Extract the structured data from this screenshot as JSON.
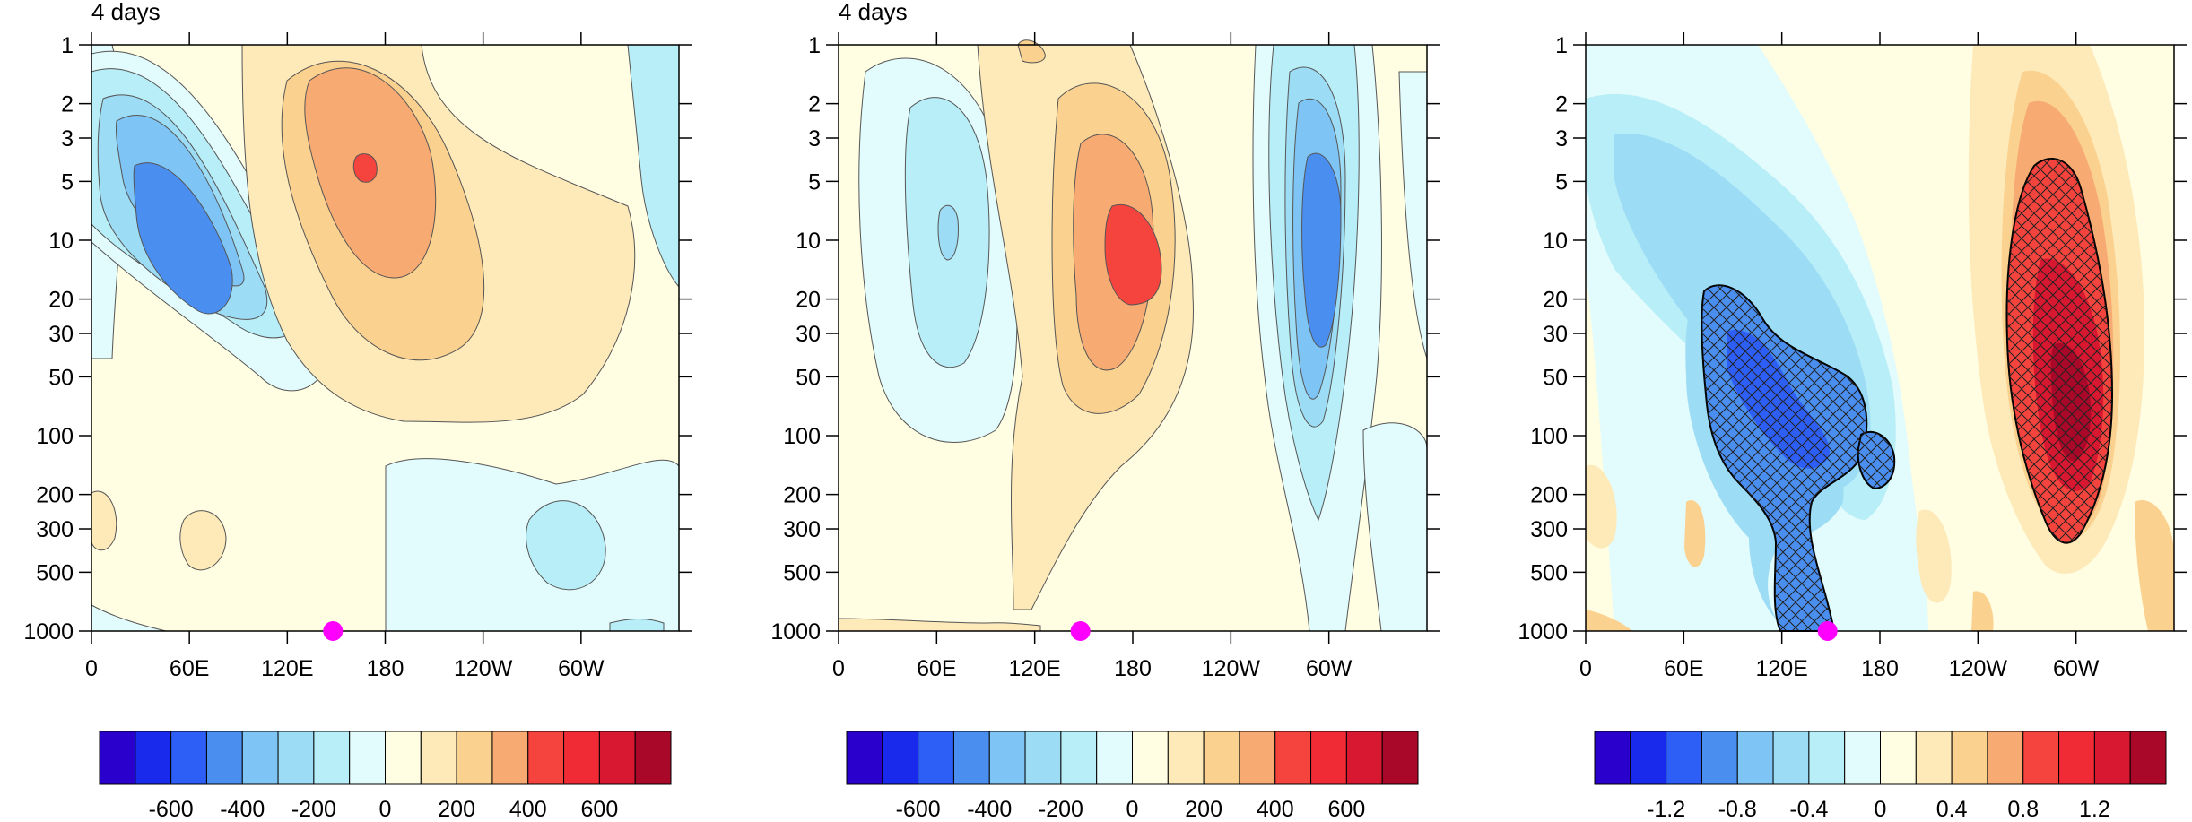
{
  "chart_data": [
    {
      "type": "heatmap",
      "title": "4 days",
      "x_ticks": [
        "0",
        "60E",
        "120E",
        "180",
        "120W",
        "60W"
      ],
      "x_tick_values": [
        0,
        60,
        120,
        180,
        240,
        300
      ],
      "xlim": [
        0,
        360
      ],
      "y_ticks": [
        "1",
        "2",
        "3",
        "5",
        "10",
        "20",
        "30",
        "50",
        "100",
        "200",
        "300",
        "500",
        "1000"
      ],
      "y_tick_values": [
        1,
        2,
        3,
        5,
        10,
        20,
        30,
        50,
        100,
        200,
        300,
        500,
        1000
      ],
      "ylim": [
        1,
        1000
      ],
      "y_scale": "log",
      "y_inverted": true,
      "marker": {
        "x": 148,
        "y": 1000,
        "color": "#ff00ff"
      },
      "colorbar": {
        "tick_labels": [
          "-600",
          "-400",
          "-200",
          "0",
          "200",
          "400",
          "600"
        ],
        "tick_values": [
          -600,
          -400,
          -200,
          0,
          200,
          400,
          600
        ],
        "range": [
          -800,
          800
        ]
      },
      "features": [
        {
          "type": "low",
          "x": 55,
          "y": 12,
          "value": -550
        },
        {
          "type": "high",
          "x": 165,
          "y": 8,
          "value": 450
        }
      ]
    },
    {
      "type": "heatmap",
      "title": "4 days",
      "x_ticks": [
        "0",
        "60E",
        "120E",
        "180",
        "120W",
        "60W"
      ],
      "x_tick_values": [
        0,
        60,
        120,
        180,
        240,
        300
      ],
      "xlim": [
        0,
        360
      ],
      "y_ticks": [
        "1",
        "2",
        "3",
        "5",
        "10",
        "20",
        "30",
        "50",
        "100",
        "200",
        "300",
        "500",
        "1000"
      ],
      "y_tick_values": [
        1,
        2,
        3,
        5,
        10,
        20,
        30,
        50,
        100,
        200,
        300,
        500,
        1000
      ],
      "ylim": [
        1,
        1000
      ],
      "y_scale": "log",
      "y_inverted": true,
      "marker": {
        "x": 148,
        "y": 1000,
        "color": "#ff00ff"
      },
      "colorbar": {
        "tick_labels": [
          "-600",
          "-400",
          "-200",
          "0",
          "200",
          "400",
          "600"
        ],
        "tick_values": [
          -600,
          -400,
          -200,
          0,
          200,
          400,
          600
        ],
        "range": [
          -800,
          800
        ]
      },
      "features": [
        {
          "type": "low",
          "x": 68,
          "y": 15,
          "value": -220
        },
        {
          "type": "high",
          "x": 180,
          "y": 15,
          "value": 550
        },
        {
          "type": "low",
          "x": 295,
          "y": 15,
          "value": -550
        }
      ]
    },
    {
      "type": "heatmap",
      "title": "",
      "x_ticks": [
        "0",
        "60E",
        "120E",
        "180",
        "120W",
        "60W"
      ],
      "x_tick_values": [
        0,
        60,
        120,
        180,
        240,
        300
      ],
      "xlim": [
        0,
        360
      ],
      "y_ticks": [
        "1",
        "2",
        "3",
        "5",
        "10",
        "20",
        "30",
        "50",
        "100",
        "200",
        "300",
        "500",
        "1000"
      ],
      "y_tick_values": [
        1,
        2,
        3,
        5,
        10,
        20,
        30,
        50,
        100,
        200,
        300,
        500,
        1000
      ],
      "ylim": [
        1,
        1000
      ],
      "y_scale": "log",
      "y_inverted": true,
      "marker": {
        "x": 148,
        "y": 1000,
        "color": "#ff00ff"
      },
      "colorbar": {
        "tick_labels": [
          "-1.2",
          "-0.8",
          "-0.4",
          "0",
          "0.4",
          "0.8",
          "1.2"
        ],
        "tick_values": [
          -1.2,
          -0.8,
          -0.4,
          0,
          0.4,
          0.8,
          1.2
        ],
        "range": [
          -1.6,
          1.6
        ]
      },
      "features": [
        {
          "type": "low",
          "x": 125,
          "y": 90,
          "value": -1.1
        },
        {
          "type": "high",
          "x": 300,
          "y": 70,
          "value": 1.4
        }
      ],
      "hatched_regions": [
        "negative region 120E-150E",
        "positive region 60W"
      ]
    }
  ],
  "colors": {
    "scale": [
      "#2a00cc",
      "#1a2aed",
      "#2d5ef5",
      "#4a8ff0",
      "#7ec5f5",
      "#9ddcf5",
      "#b8eef7",
      "#e2fbfc",
      "#fffde2",
      "#fdeab8",
      "#fbd18f",
      "#f7aa72",
      "#f5443d",
      "#f02b35",
      "#d81730",
      "#a90828"
    ],
    "marker": "#ff00ff"
  }
}
